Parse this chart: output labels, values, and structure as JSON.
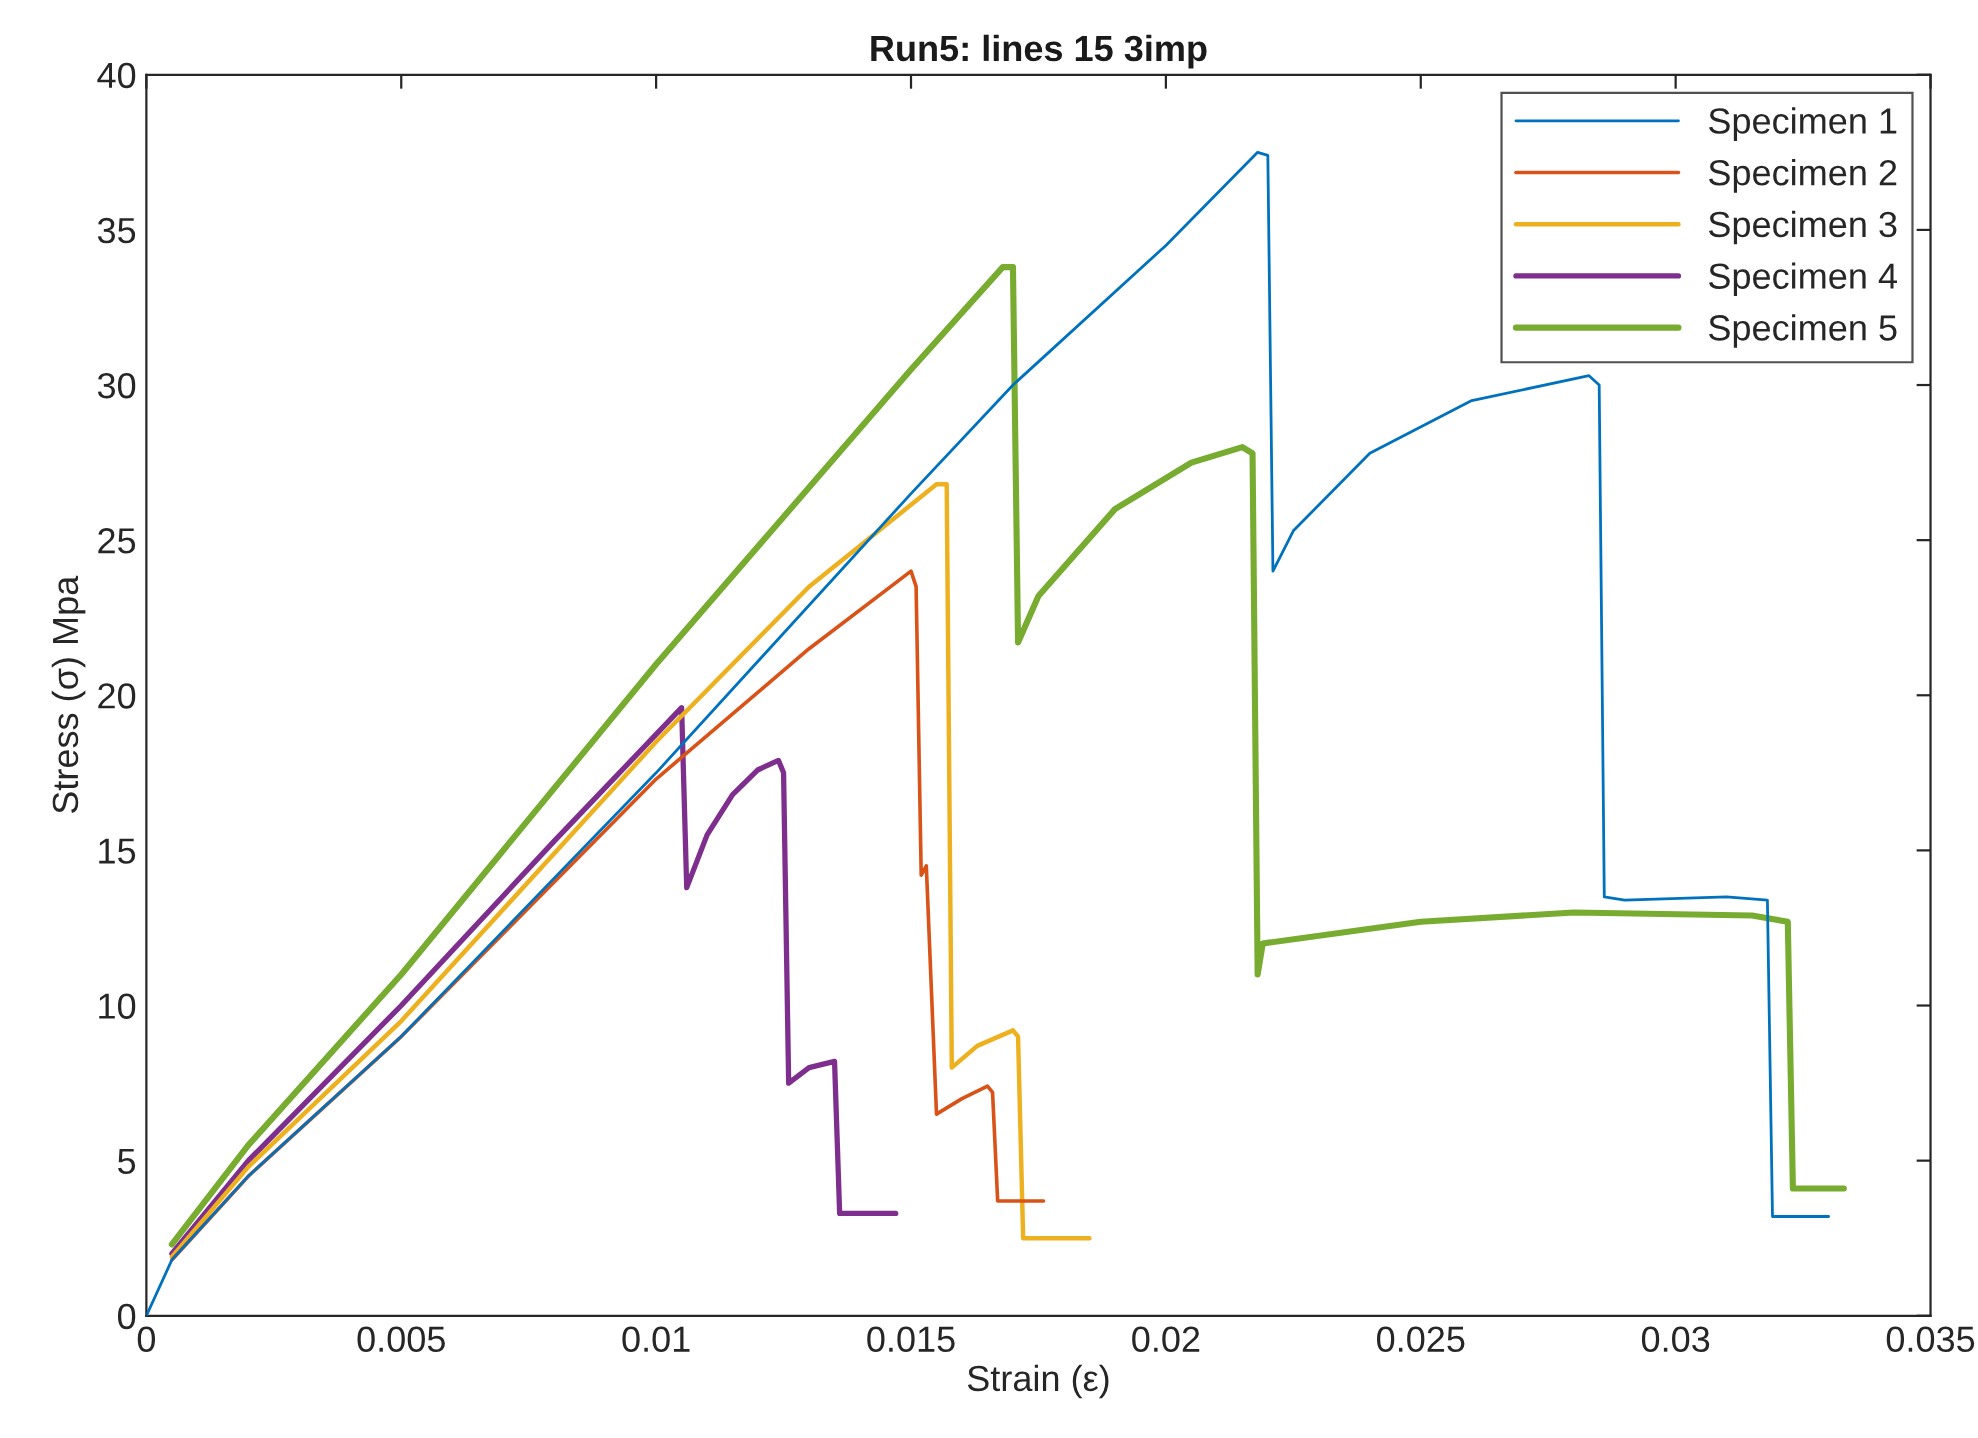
{
  "chart_data": {
    "type": "line",
    "title": "Run5: lines 15 3imp",
    "xlabel": "Strain (ε)",
    "ylabel": "Stress (σ) Mpa",
    "xlim": [
      0,
      0.035
    ],
    "xticks": [
      0,
      0.005,
      0.01,
      0.015,
      0.02,
      0.025,
      0.03,
      0.035
    ],
    "ylim": [
      0,
      40
    ],
    "yticks": [
      0,
      5,
      10,
      15,
      20,
      25,
      30,
      35,
      40
    ],
    "grid": false,
    "legend": "top right",
    "line_style": "solid",
    "marker": "none",
    "series": [
      {
        "name": "Specimen 1",
        "color": "#0072bd",
        "x": [
          0,
          0.0005,
          0.002,
          0.005,
          0.01,
          0.015,
          0.017,
          0.02,
          0.0218,
          0.022,
          0.0221,
          0.0225,
          0.024,
          0.026,
          0.0283,
          0.0285,
          0.0286,
          0.029,
          0.031,
          0.0318,
          0.0319,
          0.033
        ],
        "values": [
          0,
          1.8,
          4.5,
          9,
          17.5,
          26.5,
          30,
          34.5,
          37.5,
          37.4,
          24,
          25.3,
          27.8,
          29.5,
          30.3,
          30,
          13.5,
          13.4,
          13.5,
          13.4,
          3.2,
          3.2
        ]
      },
      {
        "name": "Specimen 2",
        "color": "#d95319",
        "x": [
          0.0005,
          0.002,
          0.005,
          0.01,
          0.013,
          0.015,
          0.0151,
          0.0152,
          0.0153,
          0.0155,
          0.016,
          0.0165,
          0.0166,
          0.0167,
          0.0176
        ],
        "values": [
          1.8,
          4.5,
          9,
          17.3,
          21.5,
          24,
          23.5,
          14.2,
          14.5,
          6.5,
          7,
          7.4,
          7.2,
          3.7,
          3.7
        ]
      },
      {
        "name": "Specimen 3",
        "color": "#edb120",
        "x": [
          0.0005,
          0.002,
          0.005,
          0.01,
          0.013,
          0.0155,
          0.0157,
          0.0158,
          0.0163,
          0.017,
          0.0171,
          0.0172,
          0.0185
        ],
        "values": [
          1.9,
          4.8,
          9.5,
          18.5,
          23.5,
          26.8,
          26.8,
          8,
          8.7,
          9.2,
          9,
          2.5,
          2.5
        ]
      },
      {
        "name": "Specimen 4",
        "color": "#7e2f8e",
        "x": [
          0.0005,
          0.002,
          0.005,
          0.008,
          0.0105,
          0.0106,
          0.011,
          0.0115,
          0.012,
          0.0124,
          0.0125,
          0.0126,
          0.013,
          0.0135,
          0.0136,
          0.0147
        ],
        "values": [
          2,
          5,
          10,
          15.3,
          19.6,
          13.8,
          15.5,
          16.8,
          17.6,
          17.9,
          17.5,
          7.5,
          8,
          8.2,
          3.3,
          3.3
        ]
      },
      {
        "name": "Specimen 5",
        "color": "#77ac30",
        "x": [
          0.0005,
          0.002,
          0.005,
          0.01,
          0.015,
          0.0168,
          0.017,
          0.0171,
          0.0175,
          0.019,
          0.0205,
          0.0215,
          0.0217,
          0.0218,
          0.0219,
          0.025,
          0.028,
          0.0315,
          0.0322,
          0.0323,
          0.0333
        ],
        "values": [
          2.3,
          5.5,
          11,
          21,
          30.5,
          33.8,
          33.8,
          21.7,
          23.2,
          26,
          27.5,
          28,
          27.8,
          11,
          12,
          12.7,
          13,
          12.9,
          12.7,
          4.1,
          4.1
        ]
      }
    ]
  }
}
